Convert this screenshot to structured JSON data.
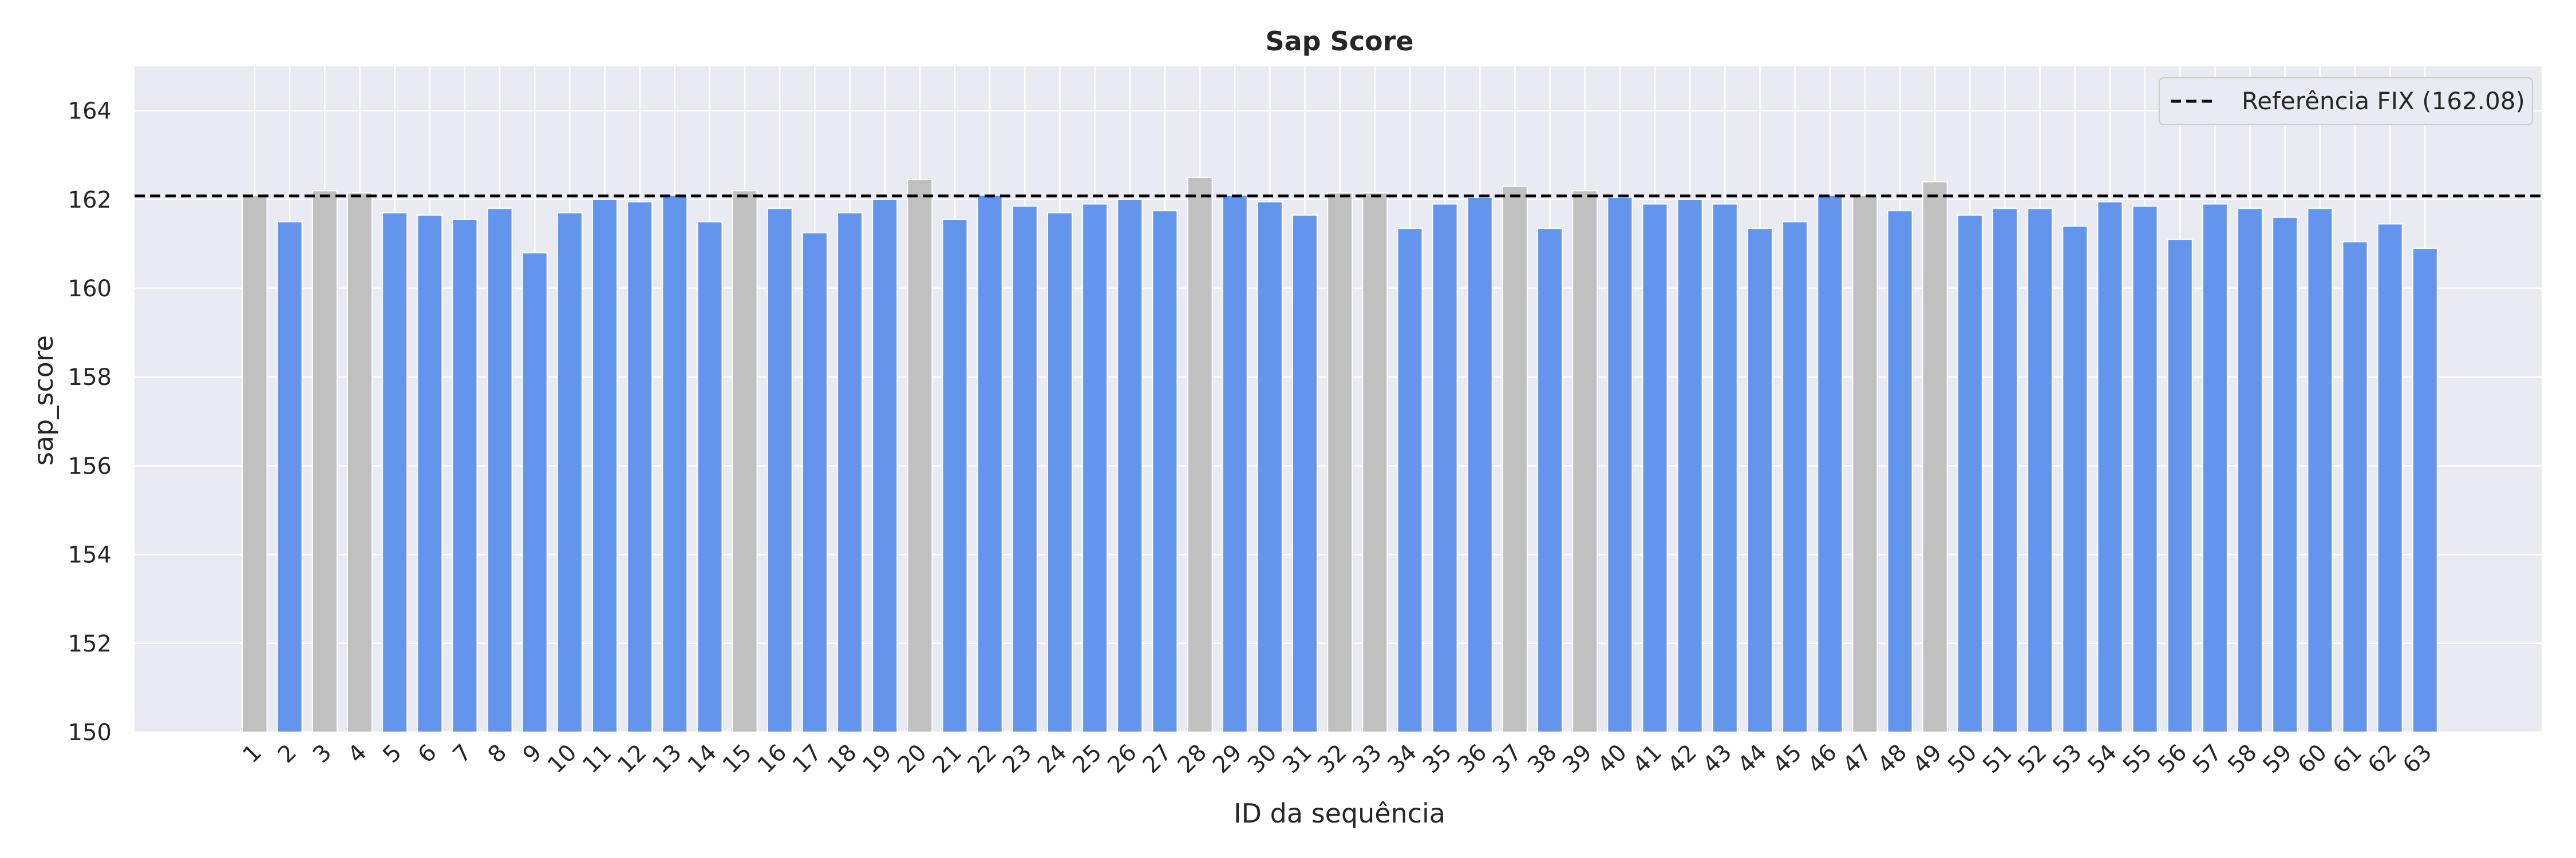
{
  "chart_data": {
    "type": "bar",
    "title": "Sap Score",
    "xlabel": "ID da sequência",
    "ylabel": "sap_score",
    "ylim": [
      150,
      165
    ],
    "yticks": [
      150,
      152,
      154,
      156,
      158,
      160,
      162,
      164
    ],
    "grid": true,
    "legend_position": "top-right",
    "categories": [
      "1",
      "2",
      "3",
      "4",
      "5",
      "6",
      "7",
      "8",
      "9",
      "10",
      "11",
      "12",
      "13",
      "14",
      "15",
      "16",
      "17",
      "18",
      "19",
      "20",
      "21",
      "22",
      "23",
      "24",
      "25",
      "26",
      "27",
      "28",
      "29",
      "30",
      "31",
      "32",
      "33",
      "34",
      "35",
      "36",
      "37",
      "38",
      "39",
      "40",
      "41",
      "42",
      "43",
      "44",
      "45",
      "46",
      "47",
      "48",
      "49",
      "50",
      "51",
      "52",
      "53",
      "54",
      "55",
      "56",
      "57",
      "58",
      "59",
      "60",
      "61",
      "62",
      "63"
    ],
    "values": [
      162.1,
      161.5,
      162.2,
      162.15,
      161.7,
      161.65,
      161.55,
      161.8,
      160.8,
      161.7,
      162.0,
      161.95,
      162.1,
      161.5,
      162.2,
      161.8,
      161.25,
      161.7,
      162.0,
      162.45,
      161.55,
      162.1,
      161.85,
      161.7,
      161.9,
      162.0,
      161.75,
      162.5,
      162.1,
      161.95,
      161.65,
      162.15,
      162.15,
      161.35,
      161.9,
      162.05,
      162.3,
      161.35,
      162.2,
      162.05,
      161.9,
      162.0,
      161.9,
      161.35,
      161.5,
      162.1,
      162.1,
      161.75,
      162.4,
      161.65,
      161.8,
      161.8,
      161.4,
      161.95,
      161.85,
      161.1,
      161.9,
      161.8,
      161.6,
      161.8,
      161.05,
      161.45,
      160.9
    ],
    "highlighted": [
      "1",
      "3",
      "4",
      "15",
      "20",
      "28",
      "32",
      "33",
      "37",
      "39",
      "47",
      "49"
    ],
    "colors": {
      "default": "#6495ED",
      "highlighted": "#C0C0C0",
      "reference": "#000000",
      "background": "#EAEAF2",
      "grid": "#FFFFFF"
    },
    "reference_line": {
      "label": "Referência FIX (162.08)",
      "value": 162.08
    }
  }
}
